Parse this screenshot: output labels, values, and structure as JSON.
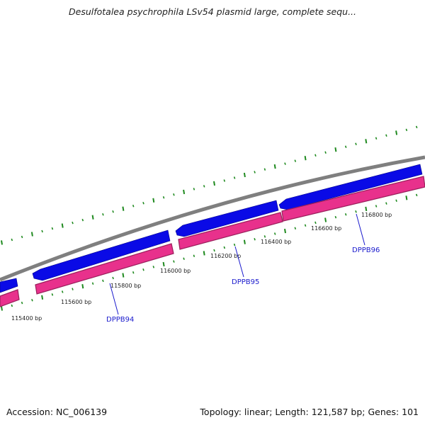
{
  "title": "Desulfotalea psychrophila LSv54 plasmid large, complete sequ...",
  "footer": {
    "accession": "Accession: NC_006139",
    "summary": "Topology: linear; Length: 121,587 bp; Genes: 101"
  },
  "colors": {
    "backbone": "#7f7f7f",
    "forward_gene": "#0a0ae6",
    "reverse_gene": "#e8318c",
    "reverse_gene_edge": "#9a1f5c",
    "gc_ticks": "#1f8a1f",
    "label": "#1a1acd"
  },
  "ticks": [
    "115400 bp",
    "115600 bp",
    "115800 bp",
    "116000 bp",
    "116200 bp",
    "116400 bp",
    "116600 bp",
    "116800 bp"
  ],
  "genes": [
    {
      "label": "DPPB94"
    },
    {
      "label": "DPPB95"
    },
    {
      "label": "DPPB96"
    }
  ]
}
